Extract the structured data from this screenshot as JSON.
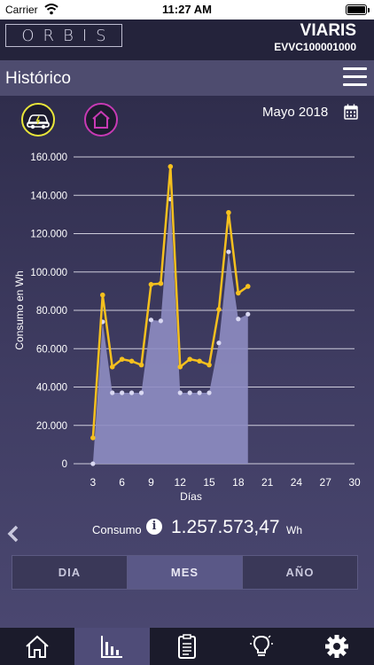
{
  "status_bar": {
    "carrier": "Carrier",
    "time": "11:27 AM"
  },
  "brand": {
    "logo": "ORBIS",
    "title": "VIARIS",
    "serial": "EVVC100001000"
  },
  "header": {
    "title": "Histórico"
  },
  "filters": {
    "month_label": "Mayo 2018"
  },
  "chart_data": {
    "type": "line",
    "ylabel": "Consumo en Wh",
    "xlabel": "Días",
    "xlim": [
      1,
      30
    ],
    "ylim": [
      0,
      160000
    ],
    "x_ticks": [
      "3",
      "6",
      "9",
      "12",
      "15",
      "18",
      "21",
      "24",
      "27",
      "30"
    ],
    "y_ticks": [
      "0",
      "20.000",
      "40.000",
      "60.000",
      "80.000",
      "100.000",
      "120.000",
      "140.000",
      "160.000"
    ],
    "grid": true,
    "series": [
      {
        "line_color": "#f5c01e",
        "x": [
          3,
          4,
          5,
          6,
          7,
          8,
          9,
          10,
          11,
          12,
          13,
          14,
          15,
          16,
          17,
          18,
          19
        ],
        "values": [
          13500,
          88000,
          50500,
          54500,
          53500,
          51500,
          93500,
          94000,
          155000,
          50500,
          54500,
          53500,
          51500,
          80500,
          131000,
          89000,
          92500
        ]
      },
      {
        "area_color": "#8e8dc2",
        "x": [
          3,
          4,
          5,
          6,
          7,
          8,
          9,
          10,
          11,
          12,
          13,
          14,
          15,
          16,
          17,
          18,
          19
        ],
        "values": [
          0,
          74000,
          37000,
          37000,
          37000,
          37000,
          75000,
          74500,
          138000,
          37000,
          37000,
          37000,
          37000,
          63000,
          110500,
          75500,
          78000
        ]
      }
    ]
  },
  "summary": {
    "label": "Consumo",
    "value": "1.257.573,47",
    "unit": "Wh"
  },
  "period_tabs": [
    {
      "label": "DIA",
      "active": false
    },
    {
      "label": "MES",
      "active": true
    },
    {
      "label": "AÑO",
      "active": false
    }
  ],
  "bottom_nav": [
    {
      "icon": "home-icon",
      "active": false
    },
    {
      "icon": "bar-chart-icon",
      "active": true
    },
    {
      "icon": "clipboard-icon",
      "active": false
    },
    {
      "icon": "lightbulb-icon",
      "active": false
    },
    {
      "icon": "gear-icon",
      "active": false
    }
  ]
}
